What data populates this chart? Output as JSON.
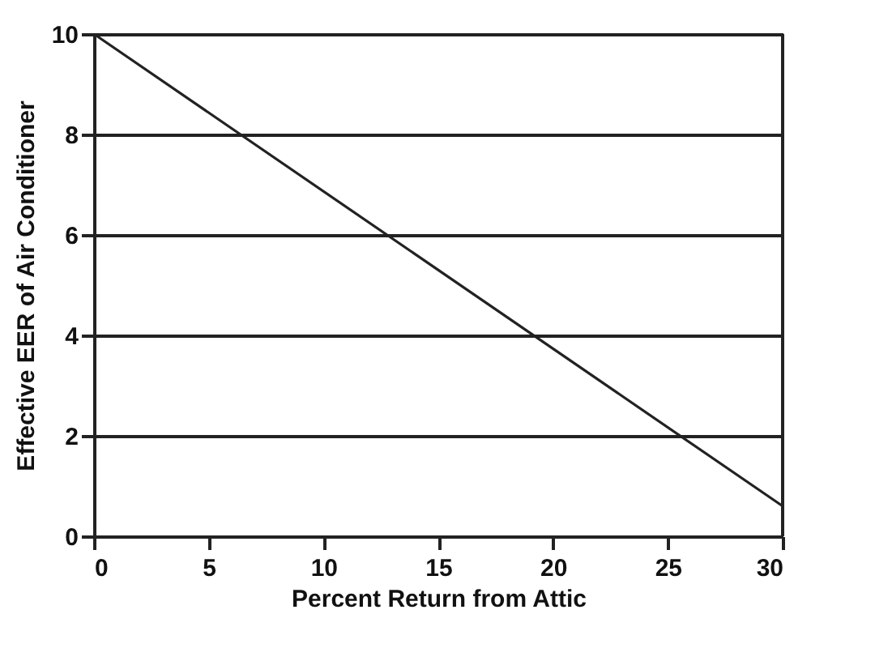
{
  "chart_data": {
    "type": "line",
    "xlabel": "Percent Return from Attic",
    "ylabel": "Effective EER of Air Conditioner",
    "x": [
      0,
      30
    ],
    "series": [
      {
        "color": "#222222",
        "values": [
          10,
          0.6
        ]
      }
    ],
    "xlim": [
      0,
      30
    ],
    "xticks": [
      0,
      5,
      10,
      15,
      20,
      25,
      30
    ],
    "ylim": [
      0,
      10
    ],
    "yticks": [
      0,
      2,
      4,
      6,
      8,
      10
    ],
    "grid": "y",
    "marker": "none",
    "line_style": "solid"
  }
}
